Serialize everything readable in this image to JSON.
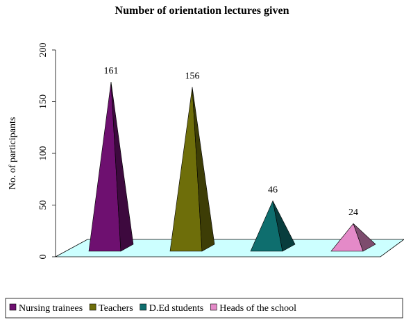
{
  "chart_data": {
    "type": "pyramid",
    "title": "Number of orientation lectures given",
    "y_label": "No. of participants",
    "categories": [
      null
    ],
    "series": [
      {
        "name": "Nursing trainees",
        "color": "#6e1070",
        "values": [
          161
        ]
      },
      {
        "name": "Teachers",
        "color": "#6e6e0a",
        "values": [
          156
        ]
      },
      {
        "name": "D.Ed students",
        "color": "#0e6e6e",
        "values": [
          46
        ]
      },
      {
        "name": "Heads of the school",
        "color": "#e48ac8",
        "values": [
          24
        ]
      }
    ],
    "ylim": [
      0,
      200
    ],
    "yticks": [
      0,
      50,
      100,
      150,
      200
    ],
    "legend": "bottom"
  }
}
